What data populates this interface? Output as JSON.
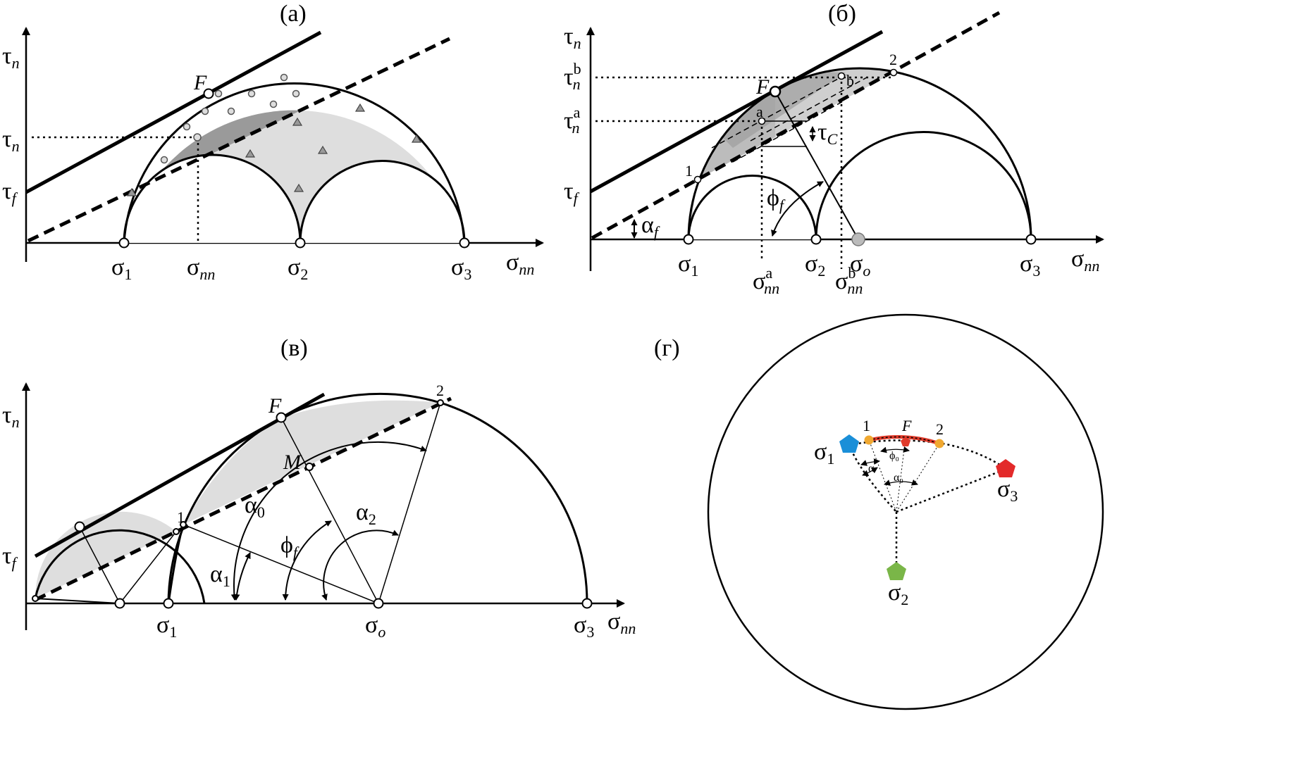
{
  "panels": {
    "a": {
      "title": "(a)",
      "tau_n": "τ",
      "tau_n_sub": "n",
      "tau_f": "τ",
      "tau_f_sub": "f",
      "F": "F",
      "sigma1": "σ",
      "sigma1_sub": "1",
      "sigma_nn": "σ",
      "sigma_nn_sub": "nn",
      "sigma2": "σ",
      "sigma2_sub": "2",
      "sigma3": "σ",
      "sigma3_sub": "3",
      "axis_x": "σ",
      "axis_x_sub": "nn"
    },
    "b": {
      "title": "(б)",
      "tau_n": "τ",
      "tau_n_sub": "n",
      "tau_nb": "τ",
      "tau_nb_sup": "b",
      "tau_nb_sub": "n",
      "tau_na": "τ",
      "tau_na_sup": "a",
      "tau_na_sub": "n",
      "tau_f": "τ",
      "tau_f_sub": "f",
      "alpha_f": "α",
      "alpha_f_sub": "f",
      "phi_f": "ϕ",
      "phi_f_sub": "f",
      "tau_c": "τ",
      "tau_c_sub": "C",
      "F": "F",
      "pt_a": "a",
      "pt_b": "b",
      "pt_1": "1",
      "pt_2": "2",
      "sigma1": "σ",
      "sigma1_sub": "1",
      "sigma2": "σ",
      "sigma2_sub": "2",
      "sigma_o": "σ",
      "sigma_o_sub": "o",
      "sigma3": "σ",
      "sigma3_sub": "3",
      "axis_x": "σ",
      "axis_x_sub": "nn",
      "sigma_nna": "σ",
      "sigma_nna_sup": "a",
      "sigma_nna_sub": "nn",
      "sigma_nnb": "σ",
      "sigma_nnb_sup": "b",
      "sigma_nnb_sub": "nn"
    },
    "c": {
      "title": "(в)",
      "tau_n": "τ",
      "tau_n_sub": "n",
      "tau_f": "τ",
      "tau_f_sub": "f",
      "F": "F",
      "M": "M",
      "pt_1": "1",
      "pt_2": "2",
      "alpha0": "α",
      "alpha0_sub": "0",
      "alpha1": "α",
      "alpha1_sub": "1",
      "alpha2": "α",
      "alpha2_sub": "2",
      "phi_f": "ϕ",
      "phi_f_sub": "f",
      "sigma1": "σ",
      "sigma1_sub": "1",
      "sigma_o": "σ",
      "sigma_o_sub": "o",
      "sigma3": "σ",
      "sigma3_sub": "3",
      "axis_x": "σ",
      "axis_x_sub": "nn"
    },
    "d": {
      "title": "(г)",
      "pt_1": "1",
      "pt_2": "2",
      "F": "F",
      "phi0": "ϕ₀",
      "alpha0": "α₀",
      "alpha": "α",
      "sigma1": "σ",
      "sigma1_sub": "1",
      "sigma2": "σ",
      "sigma2_sub": "2",
      "sigma3": "σ",
      "sigma3_sub": "3"
    }
  },
  "colors": {
    "line": "#000000",
    "dark_fill": "#9a9a9a",
    "light_fill": "#dedede",
    "sigma1_marker": "#1a8fd8",
    "sigma2_marker": "#7ab648",
    "sigma3_marker": "#e32a2a",
    "arc_marker": "#f0a830",
    "arc_red": "#e03a2a"
  }
}
